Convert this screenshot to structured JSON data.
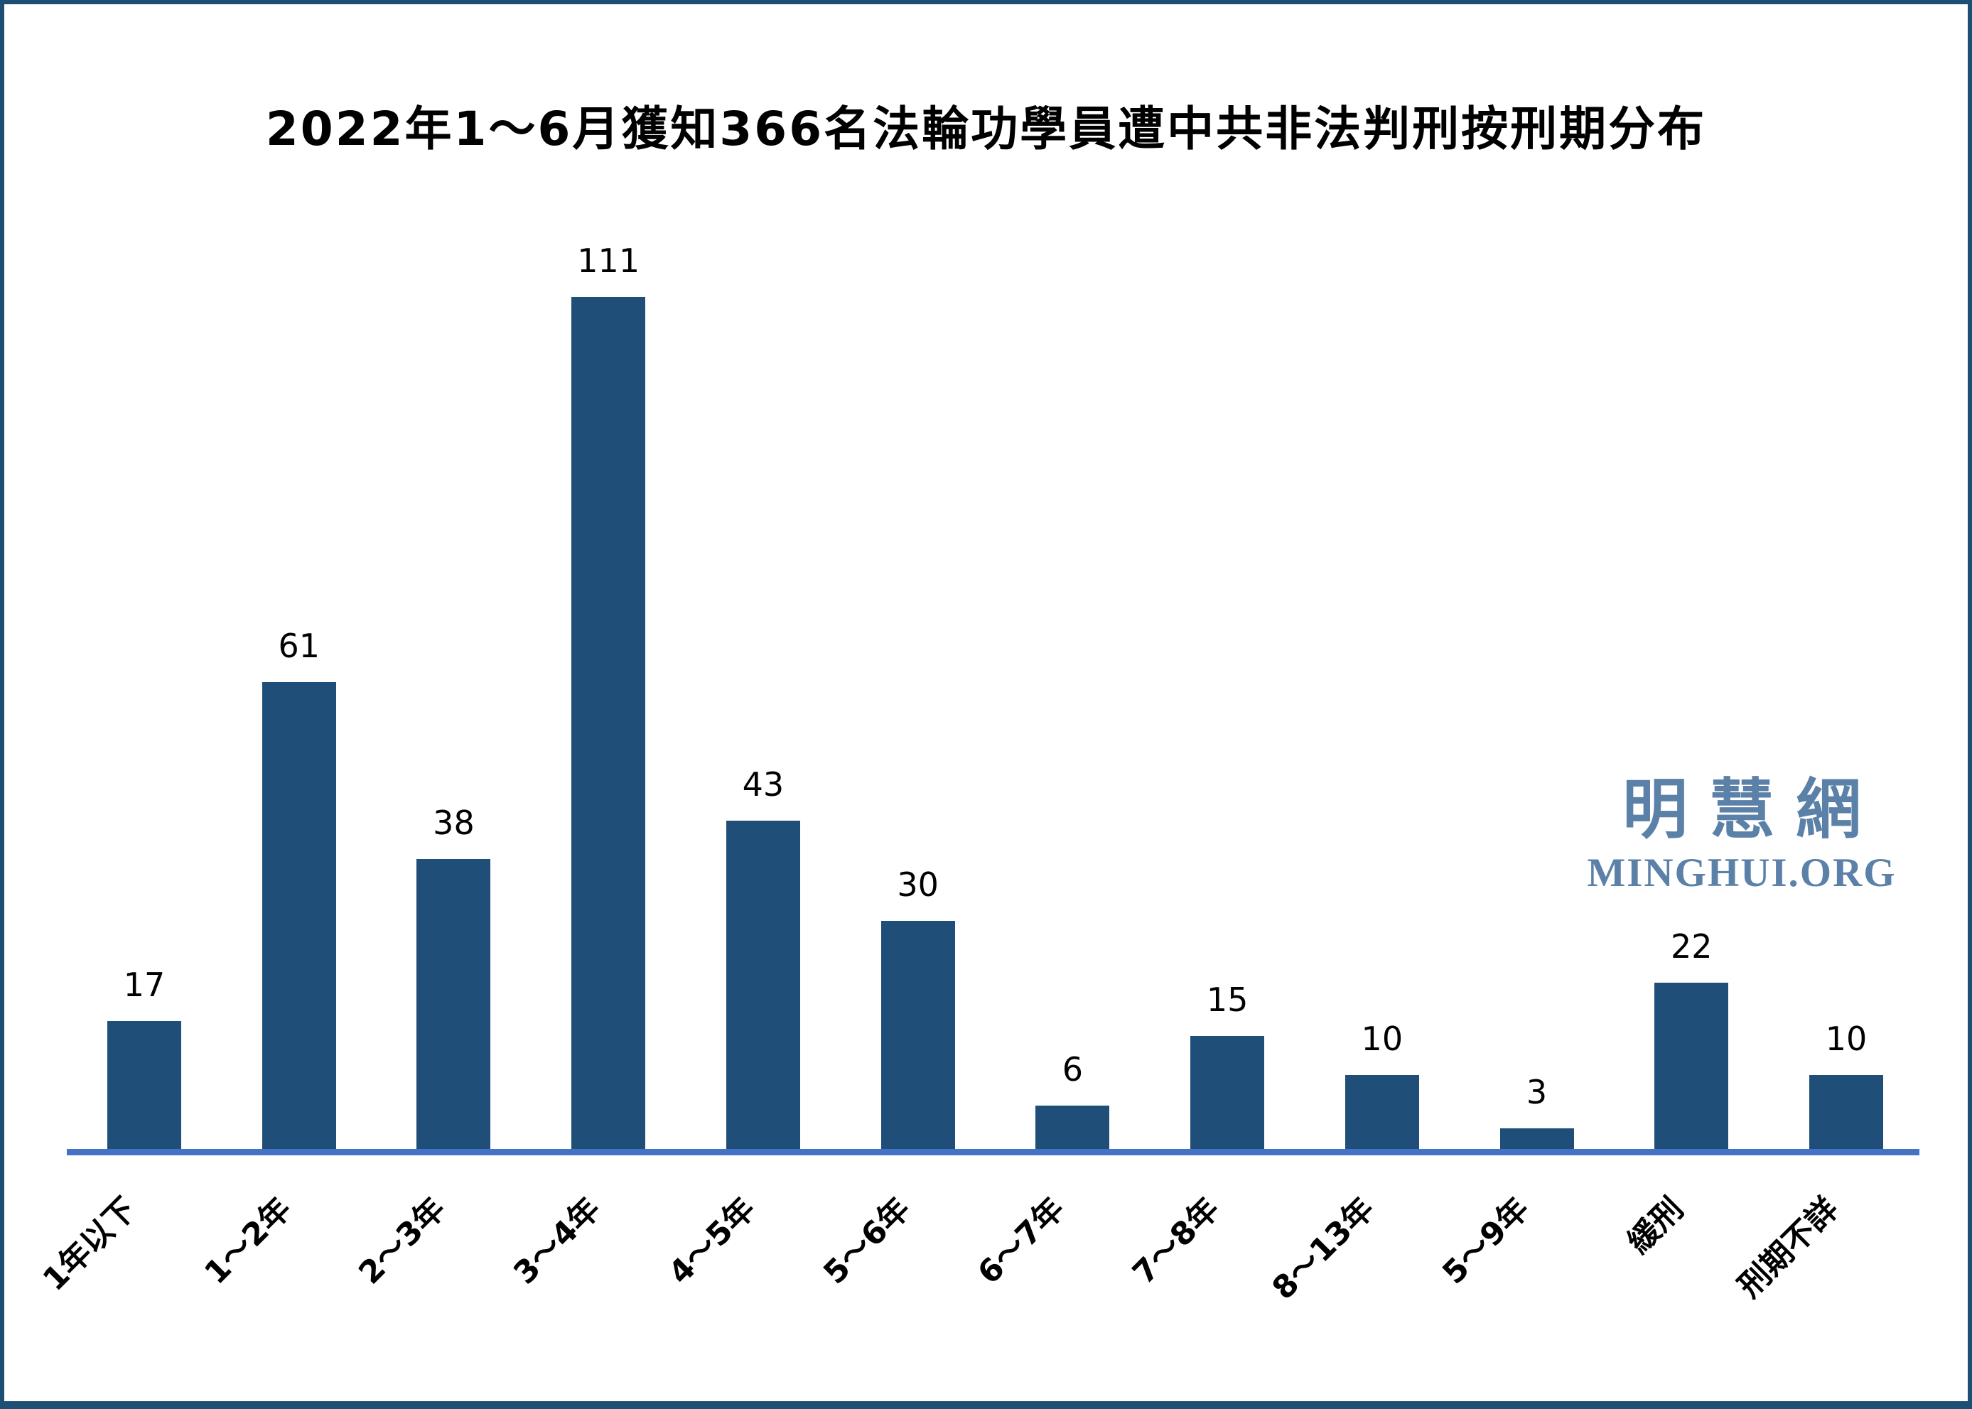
{
  "frame": {
    "border_color": "#1d4f74",
    "background_color": "#ffffff"
  },
  "title": "2022年1～6月獲知366名法輪功學員遭中共非法判刑按刑期分布",
  "watermark": {
    "cjk": "明慧網",
    "latin": "MINGHUI.ORG",
    "color": "#5b81a8"
  },
  "chart_data": {
    "type": "bar",
    "title": "2022年1～6月獲知366名法輪功學員遭中共非法判刑按刑期分布",
    "categories": [
      "1年以下",
      "1～2年",
      "2～3年",
      "3～4年",
      "4～5年",
      "5～6年",
      "6～7年",
      "7～8年",
      "8～13年",
      "5～9年",
      "緩刑",
      "刑期不詳"
    ],
    "values": [
      17,
      61,
      38,
      111,
      43,
      30,
      6,
      15,
      10,
      3,
      22,
      10
    ],
    "total_in_title": 366,
    "xlabel": "",
    "ylabel": "",
    "ylim": [
      0,
      120
    ],
    "grid": false,
    "legend": false,
    "data_labels": true,
    "x_tick_rotation_deg": 45,
    "bar_color": "#1f4f78",
    "axis_line_color": "#4472c4",
    "label_color": "#000000"
  }
}
